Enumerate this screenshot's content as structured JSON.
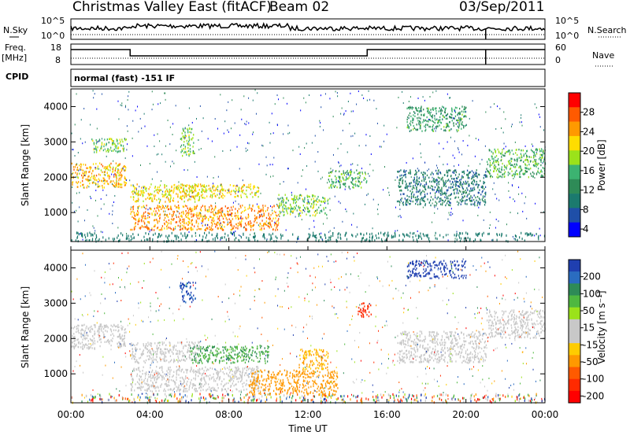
{
  "header": {
    "title": "Christmas Valley East (fitACF)",
    "beam": "Beam 02",
    "date": "03/Sep/2011"
  },
  "top_panels": {
    "nsky_label": "N.Sky",
    "nsky_ticks": [
      "10^5",
      "10^0"
    ],
    "nsearch_label": "N.Search",
    "nsearch_ticks": [
      "10^5",
      "10^0"
    ],
    "freq_label_1": "Freq.",
    "freq_label_2": "[MHz]",
    "freq_ticks": [
      "18",
      "8"
    ],
    "nave_label": "Nave",
    "nave_ticks": [
      "60",
      "0"
    ],
    "cpid_label": "CPID",
    "cpid_text": "normal (fast) -151 IF"
  },
  "chart_data": [
    {
      "type": "heatmap",
      "name": "power",
      "ylabel": "Slant Range [km]",
      "yticks": [
        "4000",
        "3000",
        "2000",
        "1000"
      ],
      "ylim": [
        180,
        4500
      ],
      "xlim": [
        0,
        24
      ],
      "colorbar_label": "Power [dB]",
      "colorbar_ticks": [
        "28",
        "24",
        "20",
        "16",
        "12",
        "8",
        "4"
      ],
      "colorbar_colors": [
        "#ff0000",
        "#ff5a00",
        "#ff9900",
        "#ffdd00",
        "#9be21a",
        "#3cb371",
        "#2e8b57",
        "#1b7a6e",
        "#1f4fa8",
        "#0000ff"
      ],
      "echo_regions": [
        {
          "t0": 0.0,
          "t1": 2.8,
          "r0": 1700,
          "r1": 2400,
          "level": 22
        },
        {
          "t0": 1.0,
          "t1": 2.8,
          "r0": 2700,
          "r1": 3100,
          "level": 16
        },
        {
          "t0": 3.0,
          "t1": 6.5,
          "r0": 1300,
          "r1": 1800,
          "level": 20
        },
        {
          "t0": 3.0,
          "t1": 10.5,
          "r0": 500,
          "r1": 1200,
          "level": 24
        },
        {
          "t0": 5.5,
          "t1": 9.5,
          "r0": 1400,
          "r1": 1800,
          "level": 20
        },
        {
          "t0": 5.5,
          "t1": 6.2,
          "r0": 2600,
          "r1": 3400,
          "level": 16
        },
        {
          "t0": 10.5,
          "t1": 13.0,
          "r0": 900,
          "r1": 1500,
          "level": 16
        },
        {
          "t0": 13.0,
          "t1": 15.0,
          "r0": 1700,
          "r1": 2200,
          "level": 14
        },
        {
          "t0": 16.5,
          "t1": 21.0,
          "r0": 1200,
          "r1": 2200,
          "level": 8
        },
        {
          "t0": 17.0,
          "t1": 20.0,
          "r0": 3300,
          "r1": 4000,
          "level": 12
        },
        {
          "t0": 21.0,
          "t1": 24.0,
          "r0": 2000,
          "r1": 2800,
          "level": 14
        }
      ]
    },
    {
      "type": "heatmap",
      "name": "velocity",
      "ylabel": "Slant Range [km]",
      "yticks": [
        "4000",
        "3000",
        "2000",
        "1000"
      ],
      "ylim": [
        180,
        4500
      ],
      "xlim": [
        0,
        24
      ],
      "colorbar_label": "Velocity [m s⁻¹]",
      "colorbar_ticks": [
        "200",
        "100",
        "50",
        "15",
        "-15",
        "-50",
        "-100",
        "-200"
      ],
      "colorbar_colors": [
        "#1f3fb0",
        "#2a6cc0",
        "#2e8b57",
        "#4fb840",
        "#9be21a",
        "#c8c8c8",
        "#c8c8c8",
        "#ffcc00",
        "#ff9900",
        "#ff5a00",
        "#ff2a00",
        "#ff0000"
      ],
      "echo_regions": [
        {
          "t0": 0.0,
          "t1": 2.8,
          "r0": 1700,
          "r1": 2400,
          "level": 0
        },
        {
          "t0": 3.0,
          "t1": 6.5,
          "r0": 1300,
          "r1": 1900,
          "level": 0
        },
        {
          "t0": 3.0,
          "t1": 9.5,
          "r0": 500,
          "r1": 1200,
          "level": 0
        },
        {
          "t0": 6.0,
          "t1": 10.0,
          "r0": 1300,
          "r1": 1800,
          "level": 40
        },
        {
          "t0": 5.5,
          "t1": 6.3,
          "r0": 3000,
          "r1": 3600,
          "level": 150
        },
        {
          "t0": 9.0,
          "t1": 13.5,
          "r0": 400,
          "r1": 1100,
          "level": -60
        },
        {
          "t0": 11.5,
          "t1": 13.0,
          "r0": 1100,
          "r1": 1700,
          "level": -40
        },
        {
          "t0": 14.5,
          "t1": 15.2,
          "r0": 2600,
          "r1": 3000,
          "level": -200
        },
        {
          "t0": 17.0,
          "t1": 20.0,
          "r0": 3700,
          "r1": 4200,
          "level": 200
        },
        {
          "t0": 16.5,
          "t1": 21.0,
          "r0": 1300,
          "r1": 2200,
          "level": 0
        },
        {
          "t0": 21.0,
          "t1": 24.0,
          "r0": 2000,
          "r1": 2800,
          "level": 0
        }
      ]
    }
  ],
  "x_axis": {
    "ticks": [
      "00:00",
      "04:00",
      "08:00",
      "12:00",
      "16:00",
      "20:00",
      "00:00"
    ],
    "label": "Time UT"
  }
}
